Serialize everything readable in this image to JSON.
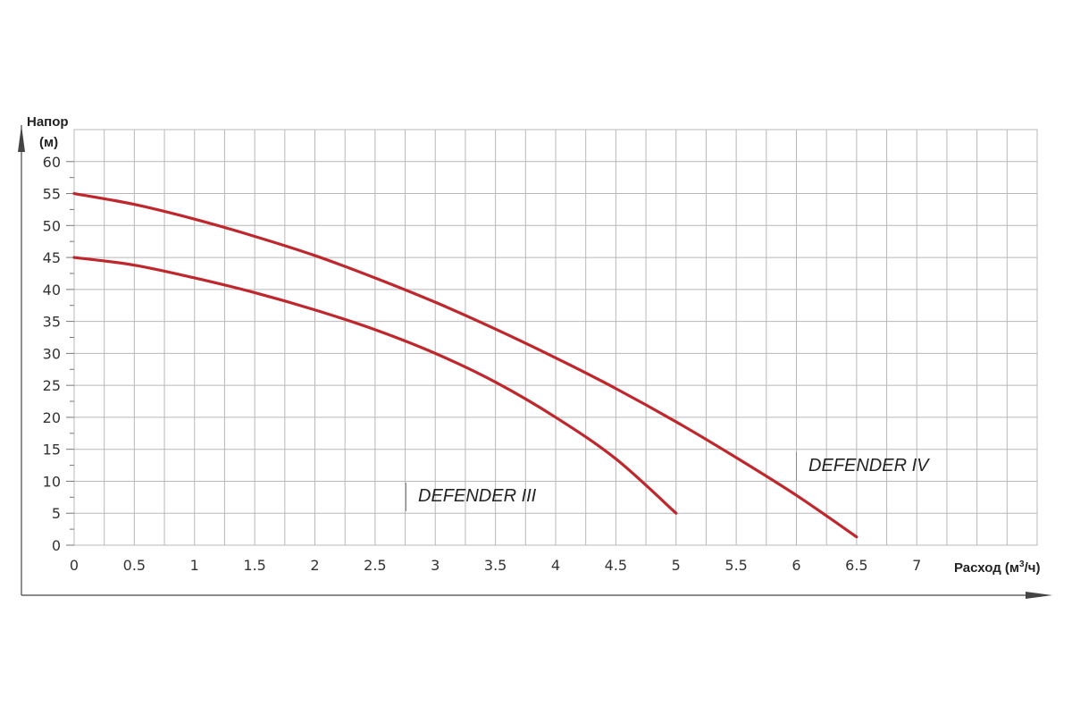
{
  "chart_data": {
    "type": "line",
    "title": "",
    "ylabel_line1": "Напор",
    "ylabel_line2": "(м)",
    "xlabel_prefix": "Расход (м",
    "xlabel_sup": "3",
    "xlabel_suffix": "/ч)",
    "xlim": [
      0,
      8
    ],
    "ylim": [
      0,
      65
    ],
    "x_ticks": [
      0,
      0.5,
      1,
      1.5,
      2,
      2.5,
      3,
      3.5,
      4,
      4.5,
      5,
      5.5,
      6,
      6.5,
      7
    ],
    "x_tick_labels": [
      "0",
      "0.5",
      "1",
      "1.5",
      "2",
      "2.5",
      "3",
      "3.5",
      "4",
      "4.5",
      "5",
      "5.5",
      "6",
      "6.5",
      "7"
    ],
    "y_ticks": [
      0,
      5,
      10,
      15,
      20,
      25,
      30,
      35,
      40,
      45,
      50,
      55,
      60
    ],
    "y_tick_labels": [
      "0",
      "5",
      "10",
      "15",
      "20",
      "25",
      "30",
      "35",
      "40",
      "45",
      "50",
      "55",
      "60"
    ],
    "grid": true,
    "line_color": "#c0272d",
    "grid_color": "#b8b8b8",
    "series": [
      {
        "name": "DEFENDER III",
        "x": [
          0,
          0.5,
          1,
          1.5,
          2,
          2.5,
          3,
          3.5,
          4,
          4.5,
          5
        ],
        "y": [
          45,
          43.8,
          41.8,
          39.5,
          36.8,
          33.7,
          30,
          25.5,
          20,
          13.5,
          5
        ]
      },
      {
        "name": "DEFENDER IV",
        "x": [
          0,
          0.5,
          1,
          1.5,
          2,
          2.5,
          3,
          3.5,
          4,
          4.5,
          5,
          5.5,
          6,
          6.5
        ],
        "y": [
          55,
          53.3,
          51,
          48.3,
          45.3,
          41.8,
          38,
          33.8,
          29.3,
          24.5,
          19.3,
          13.7,
          7.8,
          1.3
        ]
      }
    ]
  }
}
